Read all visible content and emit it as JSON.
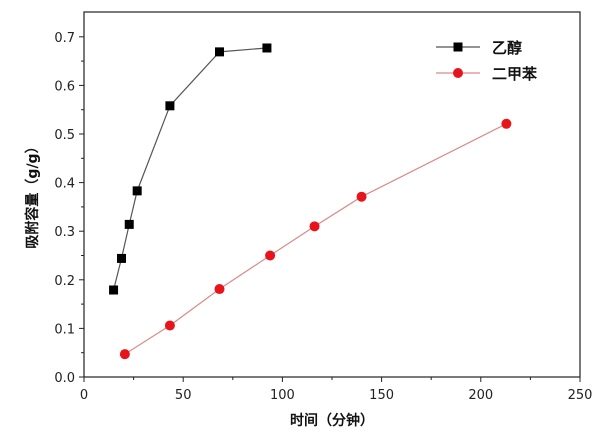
{
  "chart_data": {
    "type": "line",
    "title": "",
    "xlabel": "时间（分钟）",
    "ylabel": "吸附容量（g/g）",
    "xlim": [
      0,
      250
    ],
    "ylim": [
      0,
      0.75
    ],
    "xticks": [
      "0",
      "50",
      "100",
      "150",
      "200",
      "250"
    ],
    "yticks": [
      "0.0",
      "0.1",
      "0.2",
      "0.3",
      "0.4",
      "0.5",
      "0.6",
      "0.7"
    ],
    "grid": false,
    "legend_position": "top-right",
    "series": [
      {
        "name": "乙醇",
        "color": "#000000",
        "line_color": "#555555",
        "marker": "square",
        "x": [
          14.9,
          18.9,
          22.8,
          26.8,
          43.3,
          68.3,
          92.2
        ],
        "y": [
          0.179,
          0.244,
          0.314,
          0.383,
          0.558,
          0.669,
          0.677
        ]
      },
      {
        "name": "二甲苯",
        "color": "#e8141c",
        "line_color": "#d98a8a",
        "marker": "circle",
        "x": [
          20.6,
          43.3,
          68.3,
          93.8,
          116.2,
          139.9,
          212.9
        ],
        "y": [
          0.047,
          0.106,
          0.181,
          0.25,
          0.31,
          0.371,
          0.521
        ]
      }
    ]
  }
}
